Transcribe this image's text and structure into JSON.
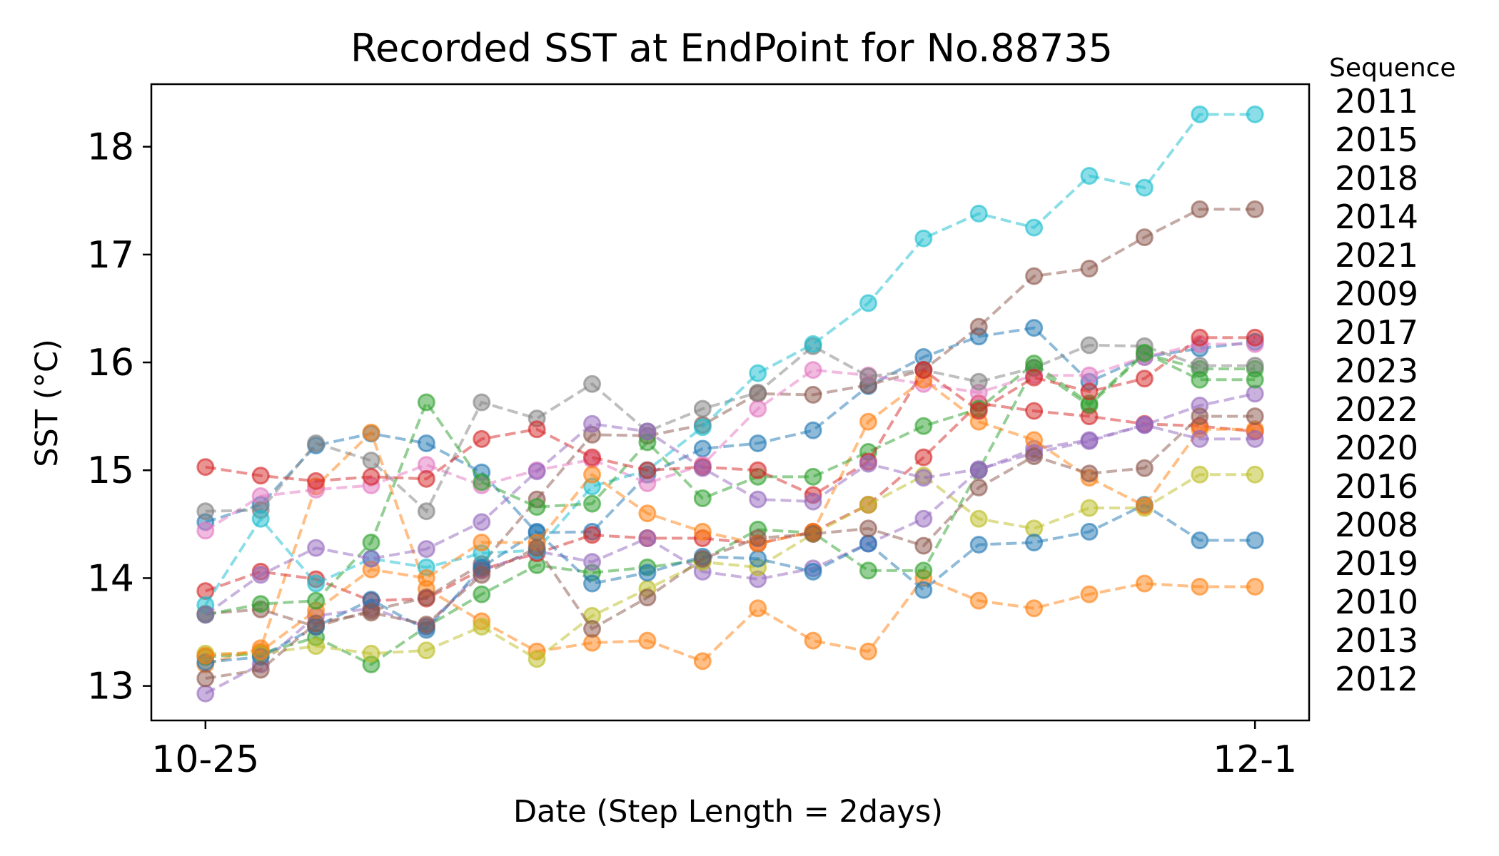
{
  "chart_data": {
    "type": "line",
    "title": "Recorded SST at EndPoint for No.88735",
    "xlabel": "Date (Step Length = 2days)",
    "ylabel": "SST (°C)",
    "x": [
      0,
      1,
      2,
      3,
      4,
      5,
      6,
      7,
      8,
      9,
      10,
      11,
      12,
      13,
      14,
      15,
      16,
      17,
      18,
      19
    ],
    "xticks": [
      {
        "x": 0,
        "label": "10-25"
      },
      {
        "x": 19,
        "label": "12-1"
      }
    ],
    "yticks": [
      13,
      14,
      15,
      16,
      17,
      18
    ],
    "xlim": [
      -0.98,
      19.98
    ],
    "ylim": [
      12.68,
      18.58
    ],
    "grid": false,
    "marker": "circle",
    "line_style": "dashed",
    "legend": {
      "title": "Sequence",
      "placement": "right-outside",
      "entries": [
        "2011",
        "2015",
        "2018",
        "2014",
        "2021",
        "2009",
        "2017",
        "2023",
        "2022",
        "2020",
        "2016",
        "2008",
        "2019",
        "2010",
        "2013",
        "2012"
      ]
    },
    "series": [
      {
        "color": "#1f77b4",
        "values": [
          14.52,
          14.68,
          15.23,
          15.34,
          15.25,
          14.98,
          14.42,
          14.43,
          14.96,
          15.2,
          15.25,
          15.37,
          15.78,
          16.05,
          16.24,
          16.32,
          15.82,
          16.05,
          16.13,
          16.19
        ]
      },
      {
        "color": "#ff7f0e",
        "values": [
          13.2,
          13.35,
          14.85,
          15.35,
          13.9,
          13.6,
          13.32,
          13.4,
          13.42,
          13.23,
          13.72,
          13.42,
          13.32,
          14.0,
          13.79,
          13.72,
          13.85,
          13.95,
          13.92,
          13.92
        ]
      },
      {
        "color": "#2ca02c",
        "values": [
          13.27,
          13.3,
          13.45,
          13.2,
          13.55,
          13.85,
          14.12,
          14.05,
          14.1,
          14.17,
          14.45,
          14.42,
          14.07,
          14.07,
          15.0,
          15.95,
          15.6,
          16.08,
          15.94,
          15.94
        ]
      },
      {
        "color": "#d62728",
        "values": [
          13.88,
          14.06,
          13.99,
          13.79,
          13.81,
          14.08,
          14.23,
          14.4,
          14.37,
          14.37,
          14.32,
          14.43,
          14.68,
          15.12,
          15.62,
          15.55,
          15.5,
          15.43,
          15.41,
          15.36
        ]
      },
      {
        "color": "#9467bd",
        "values": [
          12.93,
          13.2,
          13.65,
          13.72,
          13.55,
          14.07,
          14.25,
          14.15,
          14.37,
          14.06,
          13.99,
          14.09,
          14.32,
          14.55,
          15.0,
          15.2,
          15.28,
          15.42,
          15.6,
          15.71
        ]
      },
      {
        "color": "#8c564b",
        "values": [
          13.67,
          13.71,
          13.55,
          13.7,
          13.82,
          14.13,
          14.73,
          15.33,
          15.32,
          15.42,
          15.71,
          15.7,
          15.79,
          15.93,
          16.33,
          16.8,
          16.87,
          17.16,
          17.42,
          17.42
        ]
      },
      {
        "color": "#e377c2",
        "values": [
          14.44,
          14.76,
          14.82,
          14.86,
          15.05,
          14.86,
          15.0,
          15.1,
          14.88,
          15.05,
          15.57,
          15.93,
          15.88,
          15.8,
          15.72,
          15.88,
          15.88,
          16.05,
          16.17,
          16.17
        ]
      },
      {
        "color": "#7f7f7f",
        "values": [
          14.62,
          14.63,
          15.25,
          15.09,
          14.62,
          15.63,
          15.48,
          15.8,
          15.36,
          15.57,
          15.72,
          16.15,
          15.87,
          15.93,
          15.82,
          15.95,
          16.16,
          16.15,
          15.97,
          15.97
        ]
      },
      {
        "color": "#bcbd22",
        "values": [
          13.3,
          13.3,
          13.37,
          13.3,
          13.33,
          13.55,
          13.25,
          13.65,
          13.9,
          14.15,
          14.1,
          14.41,
          14.68,
          14.95,
          14.55,
          14.46,
          14.65,
          14.65,
          14.96,
          14.96
        ]
      },
      {
        "color": "#17becf",
        "values": [
          13.75,
          14.55,
          13.95,
          14.18,
          14.1,
          14.23,
          14.26,
          14.85,
          15.0,
          15.4,
          15.9,
          16.17,
          16.55,
          17.15,
          17.38,
          17.25,
          17.73,
          17.62,
          18.3,
          18.3
        ]
      },
      {
        "color": "#1f77b4",
        "values": [
          13.22,
          13.27,
          13.55,
          13.8,
          13.52,
          14.1,
          14.43,
          13.95,
          14.05,
          14.2,
          14.18,
          14.06,
          14.32,
          13.89,
          14.31,
          14.33,
          14.43,
          14.68,
          14.35,
          14.35
        ]
      },
      {
        "color": "#ff7f0e",
        "values": [
          13.28,
          13.32,
          13.7,
          14.08,
          14.0,
          14.33,
          14.33,
          14.96,
          14.6,
          14.43,
          14.32,
          14.43,
          15.45,
          15.84,
          15.45,
          15.28,
          14.93,
          14.67,
          15.38,
          15.38
        ]
      },
      {
        "color": "#2ca02c",
        "values": [
          13.66,
          13.76,
          13.79,
          14.33,
          15.63,
          14.89,
          14.66,
          14.69,
          15.26,
          14.74,
          14.94,
          14.94,
          15.17,
          15.41,
          15.57,
          15.99,
          15.62,
          16.09,
          15.84,
          15.84
        ]
      },
      {
        "color": "#d62728",
        "values": [
          15.03,
          14.95,
          14.9,
          14.94,
          14.92,
          15.29,
          15.38,
          15.12,
          15.0,
          15.03,
          15.0,
          14.77,
          15.08,
          15.93,
          15.55,
          15.86,
          15.73,
          15.85,
          16.23,
          16.23
        ]
      },
      {
        "color": "#9467bd",
        "values": [
          13.66,
          14.03,
          14.28,
          14.18,
          14.27,
          14.52,
          14.99,
          15.43,
          15.36,
          15.02,
          14.73,
          14.71,
          15.06,
          14.93,
          15.01,
          15.16,
          15.27,
          15.42,
          15.29,
          15.29
        ]
      },
      {
        "color": "#8c564b",
        "values": [
          13.07,
          13.15,
          13.58,
          13.68,
          13.57,
          14.03,
          14.28,
          13.53,
          13.82,
          14.18,
          14.37,
          14.41,
          14.46,
          14.3,
          14.84,
          15.13,
          14.97,
          15.02,
          15.5,
          15.5
        ]
      }
    ]
  }
}
